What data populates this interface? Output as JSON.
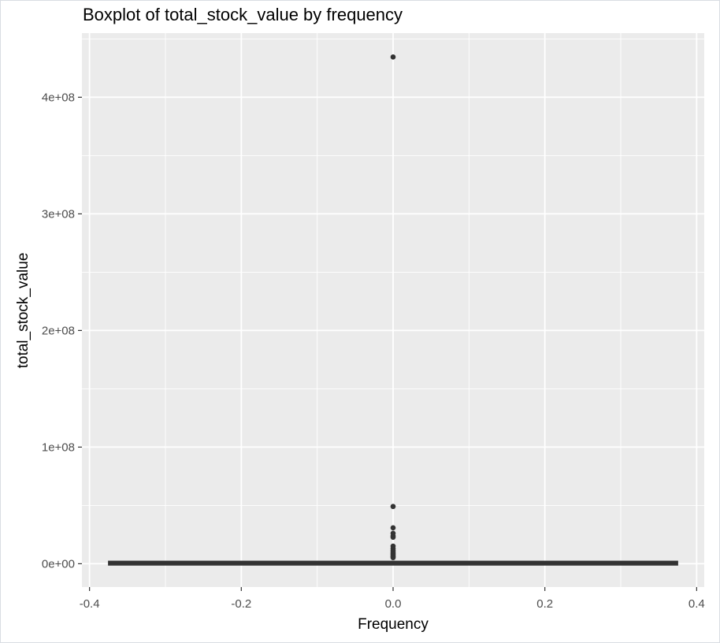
{
  "chart_data": {
    "type": "boxplot",
    "title": "Boxplot of total_stock_value by frequency",
    "xlabel": "Frequency",
    "ylabel": "total_stock_value",
    "xlim": [
      -0.41,
      0.41
    ],
    "ylim": [
      -20000000,
      455000000
    ],
    "x_ticks": [
      -0.4,
      -0.2,
      0.0,
      0.2,
      0.4
    ],
    "x_tick_labels": [
      "-0.4",
      "-0.2",
      "0.0",
      "0.2",
      "0.4"
    ],
    "y_ticks": [
      0,
      100000000,
      200000000,
      300000000,
      400000000
    ],
    "y_tick_labels": [
      "0e+00",
      "1e+08",
      "2e+08",
      "3e+08",
      "4e+08"
    ],
    "grid": true,
    "box": {
      "x_center": 0,
      "x_range": [
        -0.375,
        0.375
      ],
      "q1": 0,
      "median": 500000,
      "q3": 1000000,
      "whisker_low": 0,
      "whisker_high": 1800000
    },
    "outliers": [
      434500000,
      49100000,
      30800000,
      26100000,
      23800000,
      22700000,
      15100000,
      13000000,
      11300000,
      9900000,
      8800000,
      7900000,
      6800000,
      6100000,
      5200000
    ],
    "colors": {
      "panel": "#ebebeb",
      "grid": "#ffffff",
      "box": "#333333",
      "point": "#333333"
    }
  }
}
